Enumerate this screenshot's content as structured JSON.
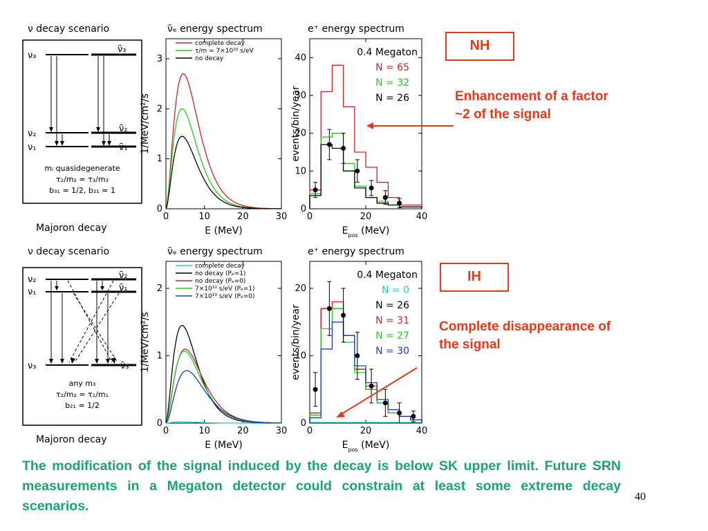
{
  "colors": {
    "accent": "#e8381b",
    "caption": "#1aa37a",
    "red": "#d0202a",
    "green": "#22cc22",
    "blue": "#1a3ad0",
    "cyan": "#22cccc"
  },
  "nh": {
    "decay_title": "ν decay scenario",
    "spectrum_title": "ν̄ₑ energy spectrum",
    "positron_title": "e⁺ energy spectrum",
    "scheme": {
      "left_top": "ν₃",
      "right_top": "ν̄₃",
      "left_mid": "ν₂",
      "right_mid": "ν̄₂",
      "left_bot": "ν₁",
      "right_bot": "ν̄₁",
      "text_lines": [
        "mᵢ quasidegenerate",
        "τ₂/m₂ = τ₃/m₃",
        "b₃₁ = 1/2,  b₂₁ = 1"
      ]
    },
    "majoron": "Majoron decay",
    "tag": "NH",
    "annotation": "Enhancement of a factor ~2 of the signal"
  },
  "ih": {
    "decay_title": "ν decay scenario",
    "spectrum_title": "ν̄ₑ energy spectrum",
    "positron_title": "e⁺ energy spectrum",
    "scheme": {
      "left_top": "ν₂",
      "right_top": "ν̄₂",
      "left_mid": "ν₁",
      "right_mid": "ν̄₁",
      "left_bot": "ν₃",
      "right_bot": "ν̄₃",
      "text_lines": [
        "any m₃",
        "τ₂/m₂ = τ₁/m₁",
        "b₂₁ = 1/2"
      ]
    },
    "majoron": "Majoron decay",
    "tag": "IH",
    "annotation": "Complete disappearance of the signal"
  },
  "caption": "The modification of the signal induced by the decay is below SK upper limit. Future SRN measurements in a Megaton detector  could constrain at least some extreme decay scenarios.",
  "page_number": "40",
  "chart_data": [
    {
      "type": "line",
      "id": "nh-spectrum",
      "xlabel": "E (MeV)",
      "ylabel": "1/MeV/cm²/s",
      "xlim": [
        0,
        30
      ],
      "ylim": [
        0,
        3.4
      ],
      "xticks": [
        0,
        10,
        20,
        30
      ],
      "yticks": [
        0,
        1,
        2,
        3
      ],
      "legend_position": "top-right",
      "series": [
        {
          "name": "complete decay",
          "color": "#d0202a",
          "peak": 2.7,
          "peak_x": 4.5,
          "alpha": 1.9
        },
        {
          "name": "τ/m = 7×10¹⁰ s/eV",
          "color": "#22cc22",
          "peak": 2.0,
          "peak_x": 4.2,
          "alpha": 1.8
        },
        {
          "name": "no decay",
          "color": "#000000",
          "peak": 1.45,
          "peak_x": 4.2,
          "alpha": 1.8
        }
      ]
    },
    {
      "type": "histogram",
      "id": "nh-positron",
      "xlabel": "E_pos (MeV)",
      "ylabel": "events/bin/year",
      "xlim": [
        0,
        40
      ],
      "ylim": [
        0,
        45
      ],
      "xticks": [
        0,
        20,
        40
      ],
      "yticks": [
        0,
        10,
        20,
        30,
        40
      ],
      "label": "0.4 Megaton",
      "bin_edges": [
        0,
        4,
        8,
        12,
        16,
        20,
        24,
        28,
        32,
        36,
        40
      ],
      "series": [
        {
          "name": "N = 65",
          "color": "#d0202a",
          "values": [
            5,
            31,
            38,
            27,
            15,
            11,
            7,
            3,
            1,
            1
          ]
        },
        {
          "name": "N = 32",
          "color": "#22cc22",
          "values": [
            4,
            19,
            20,
            12,
            6,
            3,
            2,
            1,
            0.5,
            0.5
          ]
        },
        {
          "name": "N = 26",
          "color": "#000000",
          "values": [
            3.5,
            17,
            16,
            10,
            5.5,
            3,
            1.5,
            1,
            0.5,
            0.5
          ]
        }
      ],
      "points": {
        "x": [
          2,
          7,
          12,
          17,
          22,
          27,
          32
        ],
        "y": [
          5,
          17,
          16,
          10,
          5.5,
          3,
          1.5
        ],
        "err": [
          2,
          4,
          4,
          3,
          2,
          1.8,
          1.2
        ]
      }
    },
    {
      "type": "line",
      "id": "ih-spectrum",
      "xlabel": "E (MeV)",
      "ylabel": "1/MeV/cm²/s",
      "xlim": [
        0,
        30
      ],
      "ylim": [
        0,
        2.4
      ],
      "xticks": [
        0,
        10,
        20,
        30
      ],
      "yticks": [
        0,
        1,
        2
      ],
      "legend_position": "top-right",
      "series": [
        {
          "name": "complete decay",
          "color": "#22cccc",
          "peak": 0.02,
          "peak_x": 4.2,
          "alpha": 1.8
        },
        {
          "name": "no decay (Pₑ=1)",
          "color": "#000000",
          "peak": 1.45,
          "peak_x": 4.2,
          "alpha": 1.8
        },
        {
          "name": "no decay (Pₑ=0)",
          "color": "#d0202a",
          "peak": 1.1,
          "peak_x": 5.0,
          "alpha": 1.9
        },
        {
          "name": "7×10¹⁰ s/eV (Pₑ=1)",
          "color": "#22cc22",
          "peak": 1.07,
          "peak_x": 4.8,
          "alpha": 1.9
        },
        {
          "name": "7×10¹⁰ s/eV (Pₑ=0)",
          "color": "#1a3ad0",
          "peak": 0.78,
          "peak_x": 5.4,
          "alpha": 2.0
        }
      ]
    },
    {
      "type": "histogram",
      "id": "ih-positron",
      "xlabel": "E_pos (MeV)",
      "ylabel": "events/bin/year",
      "xlim": [
        0,
        40
      ],
      "ylim": [
        0,
        24
      ],
      "xticks": [
        0,
        20,
        40
      ],
      "yticks": [
        0,
        10,
        20
      ],
      "label": "0.4 Megaton",
      "bin_edges": [
        0,
        4,
        8,
        12,
        16,
        20,
        24,
        28,
        32,
        36,
        40
      ],
      "series": [
        {
          "name": "N = 0",
          "color": "#22cccc",
          "values": [
            0.1,
            0.1,
            0.1,
            0.1,
            0.1,
            0.1,
            0.1,
            0.1,
            0.1,
            0.1
          ]
        },
        {
          "name": "N = 26",
          "color": "#000000",
          "values": [
            1.5,
            17,
            17,
            13,
            8,
            5,
            3,
            1.5,
            1,
            0.5
          ]
        },
        {
          "name": "N = 31",
          "color": "#d0202a",
          "values": [
            1.5,
            17,
            18,
            13,
            8,
            5.5,
            3,
            2,
            1,
            0.5
          ]
        },
        {
          "name": "N = 27",
          "color": "#22cc22",
          "values": [
            1.2,
            14,
            17,
            12,
            7.5,
            5,
            3,
            1.5,
            1,
            0.5
          ]
        },
        {
          "name": "N = 30",
          "color": "#1a3ad0",
          "values": [
            0.8,
            11,
            15,
            13,
            8.5,
            6,
            3.5,
            2,
            1,
            0.5
          ]
        }
      ],
      "points": {
        "x": [
          2,
          7,
          12,
          17,
          22,
          27,
          32,
          37
        ],
        "y": [
          5,
          17,
          16,
          10,
          5.5,
          3,
          1.5,
          1
        ],
        "err": [
          2.5,
          4,
          4,
          3.5,
          2.5,
          2,
          1.5,
          0.8
        ]
      }
    }
  ]
}
